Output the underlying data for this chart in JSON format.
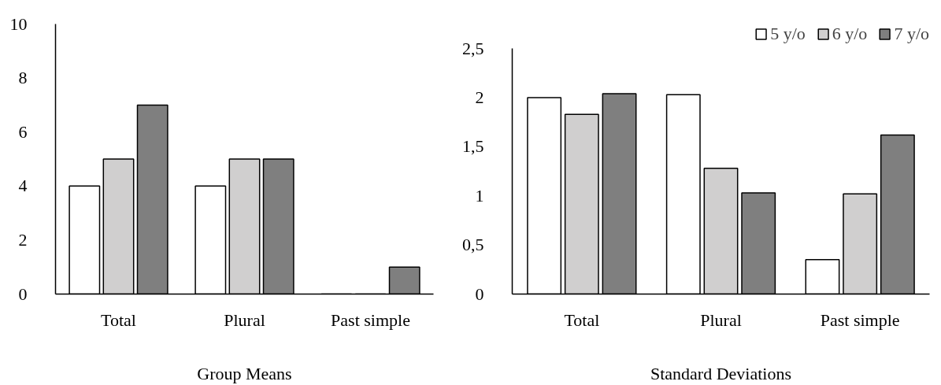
{
  "chart_data": [
    {
      "type": "bar",
      "xlabel": "Group Means",
      "categories": [
        "Total",
        "Plural",
        "Past simple"
      ],
      "ylim": [
        0,
        10
      ],
      "yticks": [
        0,
        2,
        4,
        6,
        8,
        10
      ],
      "grid": false,
      "series": [
        {
          "color": "#ffffff",
          "values": [
            4,
            4,
            0
          ]
        },
        {
          "color": "#d0cfcf",
          "values": [
            5,
            5,
            0
          ]
        },
        {
          "color": "#7f7f7f",
          "values": [
            7,
            5,
            1
          ]
        }
      ]
    },
    {
      "type": "bar",
      "xlabel": "Standard Deviations",
      "categories": [
        "Total",
        "Plural",
        "Past simple"
      ],
      "ylim": [
        0,
        2.5
      ],
      "yticks": [
        0,
        {
          "value": 0.5,
          "label": "0,5"
        },
        1,
        {
          "value": 1.5,
          "label": "1,5"
        },
        2,
        {
          "value": 2.5,
          "label": "2,5"
        }
      ],
      "grid": false,
      "legend": "top right",
      "series": [
        {
          "name": "5 y/o",
          "color": "#ffffff",
          "values": [
            2.0,
            2.03,
            0.35
          ]
        },
        {
          "name": "6 y/o",
          "color": "#d0cfcf",
          "values": [
            1.83,
            1.28,
            1.02
          ]
        },
        {
          "name": "7 y/o",
          "color": "#7f7f7f",
          "values": [
            2.04,
            1.03,
            1.62
          ]
        }
      ]
    }
  ]
}
